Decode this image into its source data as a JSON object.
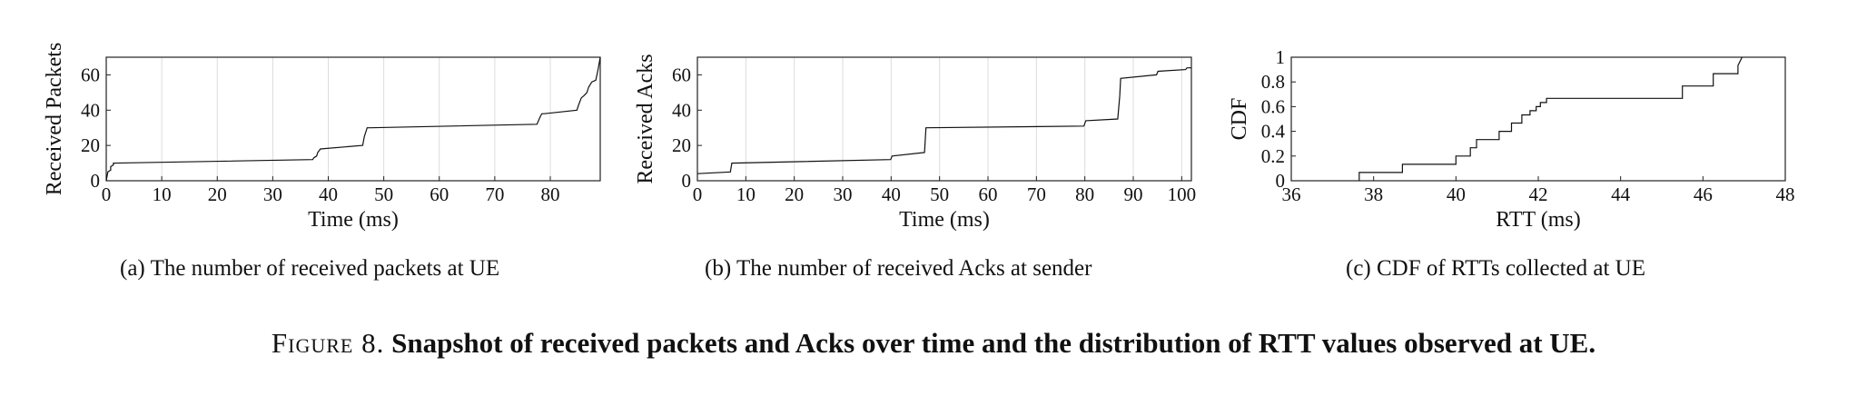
{
  "chart_data": [
    {
      "type": "line",
      "caption_label": "(a)",
      "caption_text": "The number of received packets at UE",
      "xlabel": "Time (ms)",
      "ylabel": "Received Packets",
      "xlim": [
        0,
        89
      ],
      "ylim": [
        0,
        70
      ],
      "xticks": [
        "0",
        "10",
        "20",
        "30",
        "40",
        "50",
        "60",
        "70",
        "80"
      ],
      "yticks": [
        "0",
        "20",
        "40",
        "60"
      ],
      "grid": "vertical",
      "x": [
        0,
        0.3,
        0.8,
        0.8,
        1.3,
        1.3,
        37.2,
        37.4,
        37.9,
        38.1,
        38.6,
        46.2,
        46.5,
        46.9,
        47.0,
        47.6,
        77.6,
        78.0,
        78.3,
        78.5,
        78.9,
        84.8,
        85.1,
        85.6,
        86.0,
        86.6,
        86.9,
        87.3,
        87.5,
        88.2,
        88.6,
        89.0
      ],
      "y": [
        0,
        5,
        6,
        8,
        9,
        10,
        12,
        13,
        14,
        16,
        18,
        20,
        25,
        29,
        30,
        30,
        32,
        35,
        37,
        38,
        38,
        40,
        43,
        47,
        48,
        50,
        53,
        55,
        56,
        57,
        63,
        70
      ]
    },
    {
      "type": "line",
      "caption_label": "(b)",
      "caption_text": "The number of received Acks at sender",
      "xlabel": "Time (ms)",
      "ylabel": "Received Acks",
      "xlim": [
        0,
        102
      ],
      "ylim": [
        0,
        70
      ],
      "xticks": [
        "0",
        "10",
        "20",
        "30",
        "40",
        "50",
        "60",
        "70",
        "80",
        "90",
        "100"
      ],
      "yticks": [
        "0",
        "20",
        "40",
        "60"
      ],
      "grid": "vertical",
      "x": [
        0,
        6.8,
        7.1,
        39.9,
        40.2,
        46.9,
        47.2,
        79.8,
        80.2,
        86.8,
        87.2,
        87.4,
        94.8,
        95.1,
        100.8,
        101.1,
        102.0
      ],
      "y": [
        4,
        5,
        10,
        12,
        14,
        16,
        30,
        31,
        34,
        35,
        48,
        58,
        60,
        62,
        63,
        64,
        64
      ]
    },
    {
      "type": "line",
      "caption_label": "(c)",
      "caption_text": "CDF of RTTs collected at UE",
      "xlabel": "RTT (ms)",
      "ylabel": "CDF",
      "xlim": [
        36,
        48
      ],
      "ylim": [
        0,
        1
      ],
      "xticks": [
        "36",
        "38",
        "40",
        "42",
        "44",
        "46",
        "48"
      ],
      "yticks": [
        "0",
        "0.2",
        "0.4",
        "0.6",
        "0.8",
        "1"
      ],
      "grid": "none",
      "x": [
        37.65,
        37.65,
        38.7,
        38.7,
        40.0,
        40.0,
        40.35,
        40.35,
        40.5,
        40.5,
        41.05,
        41.05,
        41.35,
        41.35,
        41.6,
        41.6,
        41.8,
        41.8,
        41.95,
        41.95,
        42.05,
        42.05,
        42.2,
        42.2,
        45.5,
        45.5,
        46.25,
        46.25,
        46.85,
        46.85,
        46.95
      ],
      "y": [
        0,
        0.067,
        0.067,
        0.133,
        0.133,
        0.2,
        0.2,
        0.267,
        0.267,
        0.333,
        0.333,
        0.4,
        0.4,
        0.467,
        0.467,
        0.533,
        0.533,
        0.567,
        0.567,
        0.6,
        0.6,
        0.633,
        0.633,
        0.667,
        0.667,
        0.767,
        0.767,
        0.867,
        0.867,
        0.933,
        1.0
      ]
    }
  ],
  "figure_caption": {
    "label": "Figure 8.",
    "text": "Snapshot of received packets and Acks over time and the distribution of RTT values observed at UE."
  }
}
